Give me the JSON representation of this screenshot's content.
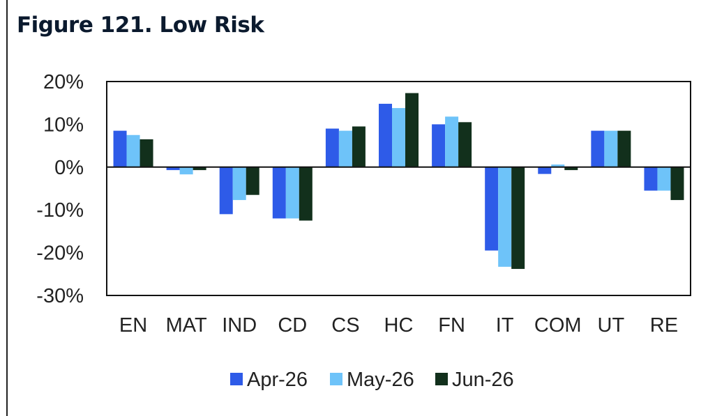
{
  "figure": {
    "title": "Figure 121. Low Risk"
  },
  "colors": {
    "apr": "#2e5be8",
    "may": "#6ec3f9",
    "jun": "#12301c",
    "axis": "#111111"
  },
  "chart_data": {
    "type": "bar",
    "title": "Figure 121. Low Risk",
    "xlabel": "",
    "ylabel": "",
    "ylim": [
      -30,
      20
    ],
    "yticks": [
      20,
      10,
      0,
      -10,
      -20,
      -30
    ],
    "ytick_labels": [
      "20%",
      "10%",
      "0%",
      "-10%",
      "-20%",
      "-30%"
    ],
    "grid": false,
    "legend": "bottom",
    "categories": [
      "EN",
      "MAT",
      "IND",
      "CD",
      "CS",
      "HC",
      "FN",
      "IT",
      "COM",
      "UT",
      "RE"
    ],
    "series": [
      {
        "name": "Apr-26",
        "color_key": "apr",
        "values": [
          8.5,
          -0.7,
          -11.0,
          -12.0,
          9.0,
          14.8,
          10.0,
          -19.5,
          -1.6,
          8.5,
          -5.5
        ]
      },
      {
        "name": "May-26",
        "color_key": "may",
        "values": [
          7.5,
          -1.7,
          -7.7,
          -12.0,
          8.5,
          13.8,
          11.8,
          -23.3,
          0.6,
          8.5,
          -5.5
        ]
      },
      {
        "name": "Jun-26",
        "color_key": "jun",
        "values": [
          6.5,
          -0.7,
          -6.5,
          -12.5,
          9.5,
          17.3,
          10.5,
          -23.8,
          -0.7,
          8.5,
          -7.7
        ]
      }
    ]
  }
}
